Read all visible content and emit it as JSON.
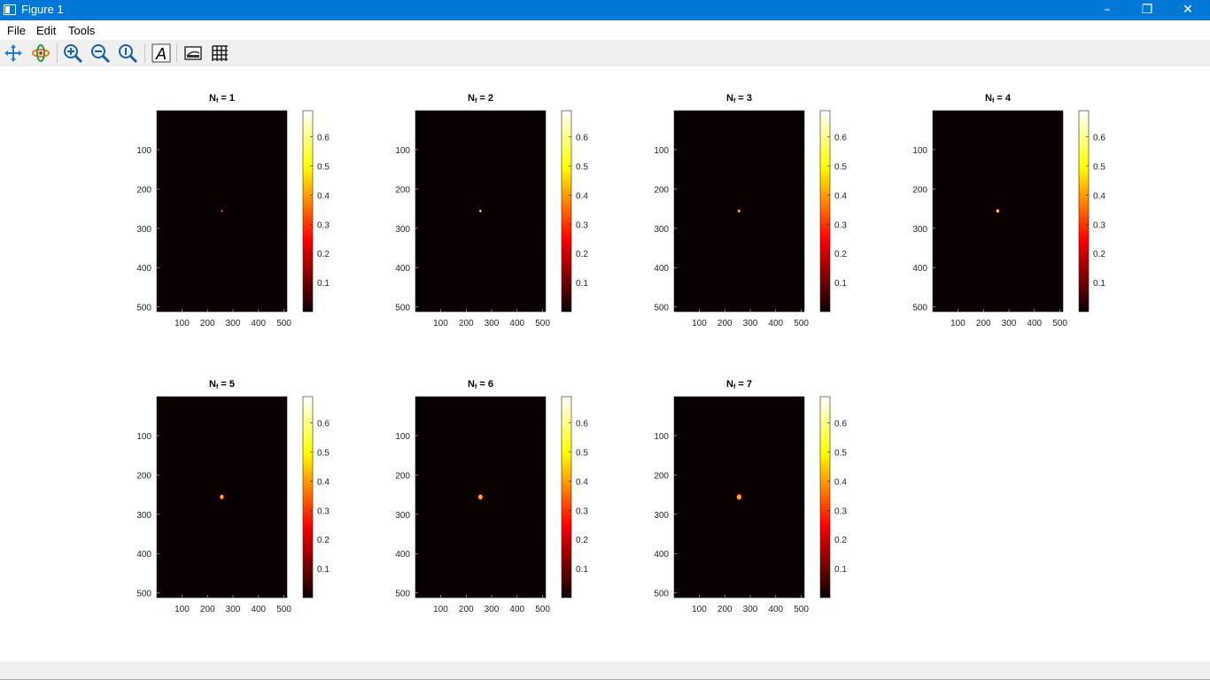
{
  "window": {
    "title": "Figure 1"
  },
  "menu": {
    "items": [
      "File",
      "Edit",
      "Tools"
    ]
  },
  "toolbar": {
    "tools": [
      "pan-icon",
      "rotate-icon",
      "zoom-in-icon",
      "zoom-out-icon",
      "zoom-reset-icon",
      "text-insert-icon",
      "colorbar-toggle-icon",
      "grid-toggle-icon"
    ]
  },
  "colors": {
    "titlebar": "#0078d7",
    "image_background": "#0a0000"
  },
  "chart_data": [
    {
      "type": "heatmap",
      "title": "Nf = 1",
      "title_main": "N",
      "title_sub": "f",
      "title_rest": " = 1",
      "xticks": [
        "100",
        "200",
        "300",
        "400",
        "500"
      ],
      "yticks": [
        "100",
        "200",
        "300",
        "400",
        "500"
      ],
      "xlim": [
        1,
        512
      ],
      "ylim": [
        1,
        512
      ],
      "colorbar_ticks": [
        "0.1",
        "0.2",
        "0.3",
        "0.4",
        "0.5",
        "0.6"
      ],
      "clim": [
        0,
        0.69
      ],
      "colormap": "hot",
      "spot": {
        "x": 256,
        "y": 256,
        "radius": 3
      }
    },
    {
      "type": "heatmap",
      "title": "Nf = 2",
      "title_main": "N",
      "title_sub": "f",
      "title_rest": " = 2",
      "xticks": [
        "100",
        "200",
        "300",
        "400",
        "500"
      ],
      "yticks": [
        "100",
        "200",
        "300",
        "400",
        "500"
      ],
      "xlim": [
        1,
        512
      ],
      "ylim": [
        1,
        512
      ],
      "colorbar_ticks": [
        "0.1",
        "0.2",
        "0.3",
        "0.4",
        "0.5",
        "0.6"
      ],
      "clim": [
        0,
        0.69
      ],
      "colormap": "hot",
      "spot": {
        "x": 256,
        "y": 256,
        "radius": 6
      }
    },
    {
      "type": "heatmap",
      "title": "Nf = 3",
      "title_main": "N",
      "title_sub": "f",
      "title_rest": " = 3",
      "xticks": [
        "100",
        "200",
        "300",
        "400",
        "500"
      ],
      "yticks": [
        "100",
        "200",
        "300",
        "400",
        "500"
      ],
      "xlim": [
        1,
        512
      ],
      "ylim": [
        1,
        512
      ],
      "colorbar_ticks": [
        "0.1",
        "0.2",
        "0.3",
        "0.4",
        "0.5",
        "0.6"
      ],
      "clim": [
        0,
        0.69
      ],
      "colormap": "hot",
      "spot": {
        "x": 256,
        "y": 256,
        "radius": 7
      }
    },
    {
      "type": "heatmap",
      "title": "Nf = 4",
      "title_main": "N",
      "title_sub": "f",
      "title_rest": " = 4",
      "xticks": [
        "100",
        "200",
        "300",
        "400",
        "500"
      ],
      "yticks": [
        "100",
        "200",
        "300",
        "400",
        "500"
      ],
      "xlim": [
        1,
        512
      ],
      "ylim": [
        1,
        512
      ],
      "colorbar_ticks": [
        "0.1",
        "0.2",
        "0.3",
        "0.4",
        "0.5",
        "0.6"
      ],
      "clim": [
        0,
        0.69
      ],
      "colormap": "hot",
      "spot": {
        "x": 256,
        "y": 256,
        "radius": 9
      }
    },
    {
      "type": "heatmap",
      "title": "Nf = 5",
      "title_main": "N",
      "title_sub": "f",
      "title_rest": " = 5",
      "xticks": [
        "100",
        "200",
        "300",
        "400",
        "500"
      ],
      "yticks": [
        "100",
        "200",
        "300",
        "400",
        "500"
      ],
      "xlim": [
        1,
        512
      ],
      "ylim": [
        1,
        512
      ],
      "colorbar_ticks": [
        "0.1",
        "0.2",
        "0.3",
        "0.4",
        "0.5",
        "0.6"
      ],
      "clim": [
        0,
        0.69
      ],
      "colormap": "hot",
      "spot": {
        "x": 256,
        "y": 256,
        "radius": 11
      }
    },
    {
      "type": "heatmap",
      "title": "Nf = 6",
      "title_main": "N",
      "title_sub": "f",
      "title_rest": " = 6",
      "xticks": [
        "100",
        "200",
        "300",
        "400",
        "500"
      ],
      "yticks": [
        "100",
        "200",
        "300",
        "400",
        "500"
      ],
      "xlim": [
        1,
        512
      ],
      "ylim": [
        1,
        512
      ],
      "colorbar_ticks": [
        "0.1",
        "0.2",
        "0.3",
        "0.4",
        "0.5",
        "0.6"
      ],
      "clim": [
        0,
        0.69
      ],
      "colormap": "hot",
      "spot": {
        "x": 256,
        "y": 256,
        "radius": 13
      }
    },
    {
      "type": "heatmap",
      "title": "Nf = 7",
      "title_main": "N",
      "title_sub": "f",
      "title_rest": " = 7",
      "xticks": [
        "100",
        "200",
        "300",
        "400",
        "500"
      ],
      "yticks": [
        "100",
        "200",
        "300",
        "400",
        "500"
      ],
      "xlim": [
        1,
        512
      ],
      "ylim": [
        1,
        512
      ],
      "colorbar_ticks": [
        "0.1",
        "0.2",
        "0.3",
        "0.4",
        "0.5",
        "0.6"
      ],
      "clim": [
        0,
        0.69
      ],
      "colormap": "hot",
      "spot": {
        "x": 256,
        "y": 256,
        "radius": 14
      }
    }
  ]
}
